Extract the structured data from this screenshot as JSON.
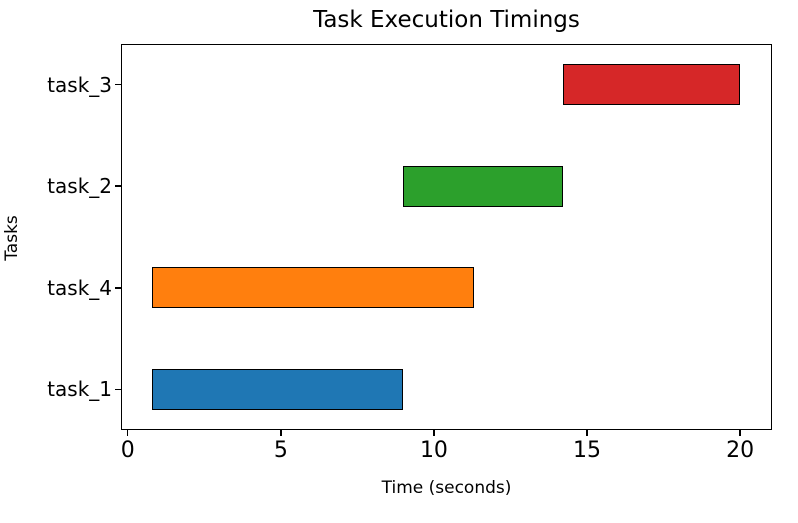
{
  "figure": {
    "title": "Task Execution Timings",
    "xlabel": "Time (seconds)",
    "ylabel": "Tasks"
  },
  "chart_data": {
    "type": "bar",
    "orientation": "horizontal",
    "title": "Task Execution Timings",
    "xlabel": "Time (seconds)",
    "ylabel": "Tasks",
    "grid": false,
    "legend": null,
    "categories_top_to_bottom": [
      "task_3",
      "task_2",
      "task_4",
      "task_1"
    ],
    "bars": [
      {
        "task": "task_3",
        "start": 14.2,
        "end": 20.0,
        "duration": 5.8,
        "color": "#d62728"
      },
      {
        "task": "task_2",
        "start": 9.0,
        "end": 14.2,
        "duration": 5.2,
        "color": "#2ca02c"
      },
      {
        "task": "task_4",
        "start": 0.8,
        "end": 11.3,
        "duration": 10.5,
        "color": "#ff7f0e"
      },
      {
        "task": "task_1",
        "start": 0.8,
        "end": 9.0,
        "duration": 8.2,
        "color": "#1f77b4"
      }
    ],
    "x_ticks": [
      0,
      5,
      10,
      15,
      20
    ],
    "xlim": [
      -0.22,
      21.04
    ],
    "ylim": [
      -0.4,
      3.4
    ],
    "bar_height_units": 0.4,
    "bar_edge_color": "#000000",
    "background_color": "#ffffff",
    "spine_color": "#000000"
  }
}
